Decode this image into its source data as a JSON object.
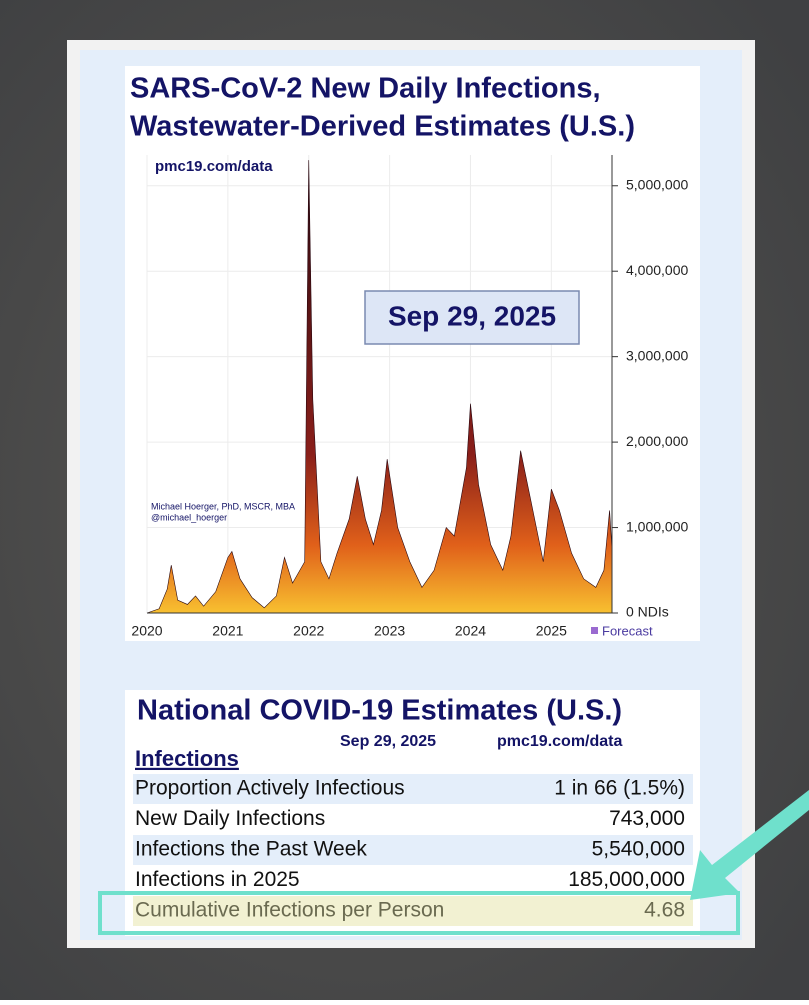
{
  "chart_data": {
    "type": "area",
    "title": [
      "SARS-CoV-2 New Daily Infections,",
      "Wastewater-Derived Estimates (U.S.)"
    ],
    "source": "pmc19.com/data",
    "date_label": "Sep 29, 2025",
    "author": [
      "Michael Hoerger, PhD, MSCR, MBA",
      "@michael_hoerger"
    ],
    "legend": {
      "label": "Forecast",
      "color": "#9a6ad0"
    },
    "x": [
      2020.0,
      2020.15,
      2020.25,
      2020.3,
      2020.38,
      2020.5,
      2020.6,
      2020.7,
      2020.85,
      2021.0,
      2021.05,
      2021.15,
      2021.3,
      2021.45,
      2021.6,
      2021.7,
      2021.8,
      2021.95,
      2022.0,
      2022.05,
      2022.15,
      2022.25,
      2022.35,
      2022.5,
      2022.6,
      2022.7,
      2022.8,
      2022.9,
      2022.97,
      2023.1,
      2023.25,
      2023.4,
      2023.55,
      2023.7,
      2023.8,
      2023.95,
      2024.0,
      2024.1,
      2024.25,
      2024.4,
      2024.5,
      2024.62,
      2024.75,
      2024.9,
      2025.0,
      2025.1,
      2025.25,
      2025.4,
      2025.55,
      2025.65,
      2025.72,
      2025.75
    ],
    "values": [
      0,
      50000,
      280000,
      560000,
      150000,
      100000,
      200000,
      80000,
      250000,
      650000,
      720000,
      400000,
      180000,
      60000,
      200000,
      650000,
      350000,
      600000,
      5300000,
      2500000,
      600000,
      400000,
      700000,
      1100000,
      1600000,
      1100000,
      800000,
      1200000,
      1800000,
      1000000,
      600000,
      300000,
      500000,
      1000000,
      900000,
      1700000,
      2450000,
      1500000,
      800000,
      500000,
      900000,
      1900000,
      1300000,
      600000,
      1450000,
      1200000,
      700000,
      400000,
      300000,
      500000,
      1200000,
      743000
    ],
    "xlim": [
      2020,
      2025.75
    ],
    "ylim": [
      0,
      5360000
    ],
    "xticks": [
      2020,
      2021,
      2022,
      2023,
      2024,
      2025
    ],
    "yticks": [
      {
        "value": 0,
        "label": "0 NDIs"
      },
      {
        "value": 1000000,
        "label": "1,000,000"
      },
      {
        "value": 2000000,
        "label": "2,000,000"
      },
      {
        "value": 3000000,
        "label": "3,000,000"
      },
      {
        "value": 4000000,
        "label": "4,000,000"
      },
      {
        "value": 5000000,
        "label": "5,000,000"
      }
    ],
    "grid": true
  },
  "table": {
    "title": "National COVID-19 Estimates (U.S.)",
    "date": "Sep 29, 2025",
    "source": "pmc19.com/data",
    "section": "Infections",
    "rows": [
      [
        "Proportion Actively Infectious",
        "1 in 66 (1.5%)"
      ],
      [
        "New Daily Infections",
        "743,000"
      ],
      [
        "Infections the Past Week",
        "5,540,000"
      ],
      [
        "Infections in 2025",
        "185,000,000"
      ],
      [
        "Cumulative Infections per Person",
        "4.68"
      ]
    ]
  }
}
